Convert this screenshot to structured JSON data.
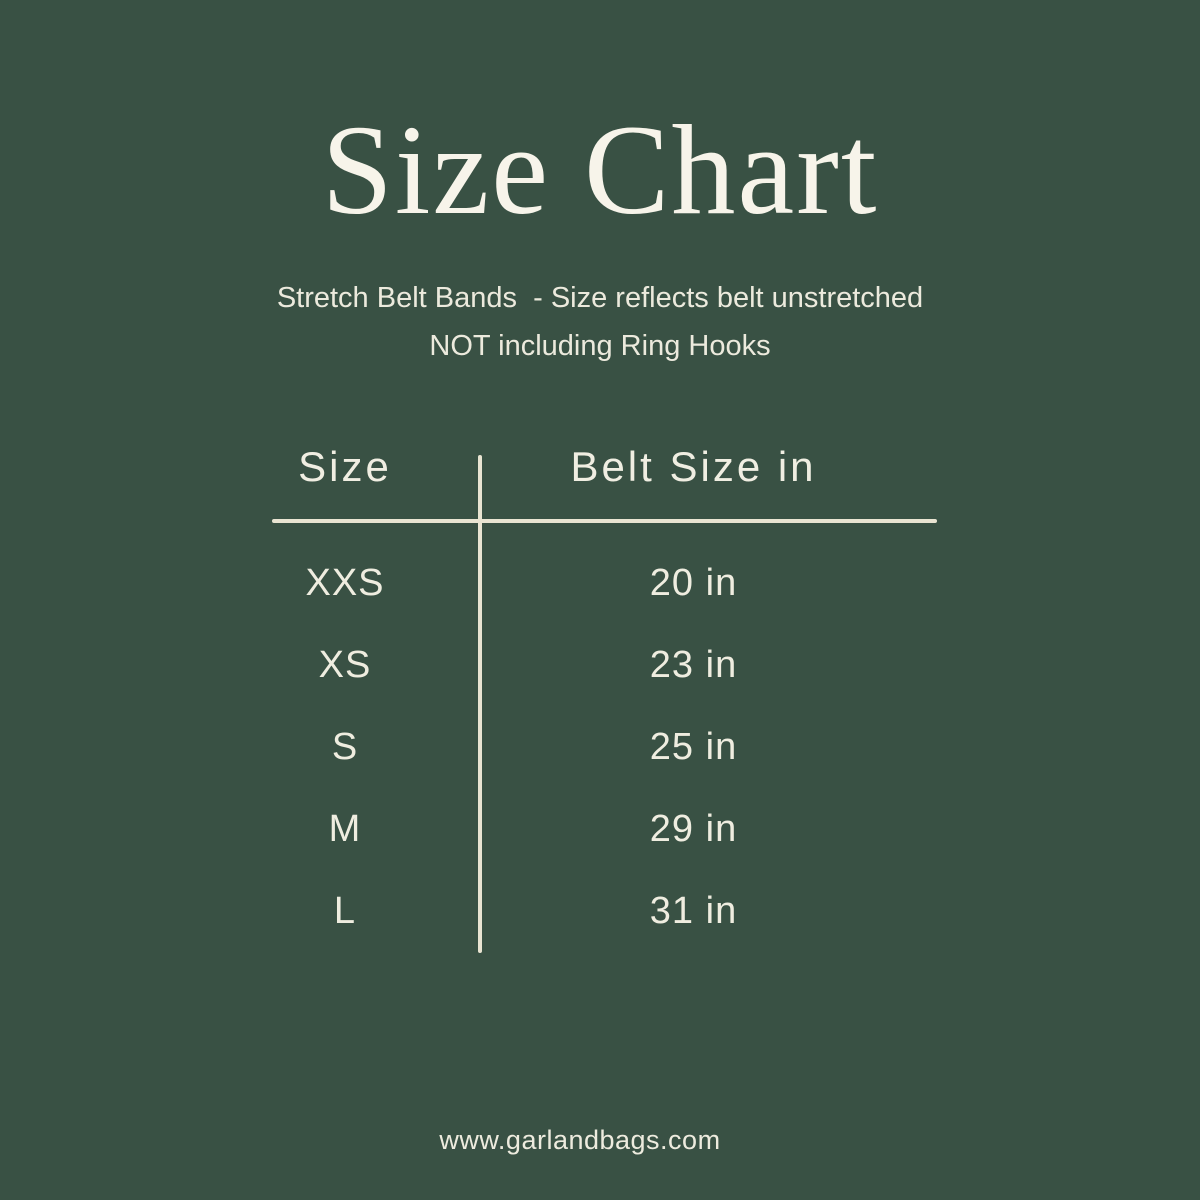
{
  "colors": {
    "background": "#395144",
    "title_text": "#F7F4EA",
    "body_text": "#EFEDE0",
    "divider_line": "#E9E4D2"
  },
  "title": "Size Chart",
  "subtitle": {
    "line1": "Stretch Belt Bands  - Size reflects belt unstretched",
    "line2": "NOT including Ring Hooks"
  },
  "table": {
    "headers": [
      "Size",
      "Belt Size in"
    ],
    "rows": [
      {
        "size": "XXS",
        "belt": "20 in"
      },
      {
        "size": "XS",
        "belt": "23 in"
      },
      {
        "size": "S",
        "belt": "25 in"
      },
      {
        "size": "M",
        "belt": "29 in"
      },
      {
        "size": "L",
        "belt": "31 in"
      }
    ]
  },
  "footer": {
    "url": "www.garlandbags.com"
  },
  "chart_data": {
    "type": "table",
    "title": "Size Chart",
    "subtitle": "Stretch Belt Bands - Size reflects belt unstretched NOT including Ring Hooks",
    "columns": [
      "Size",
      "Belt Size in"
    ],
    "rows": [
      [
        "XXS",
        "20 in"
      ],
      [
        "XS",
        "23 in"
      ],
      [
        "S",
        "25 in"
      ],
      [
        "M",
        "29 in"
      ],
      [
        "L",
        "31 in"
      ]
    ],
    "belt_sizes_inches": {
      "XXS": 20,
      "XS": 23,
      "S": 25,
      "M": 29,
      "L": 31
    }
  }
}
